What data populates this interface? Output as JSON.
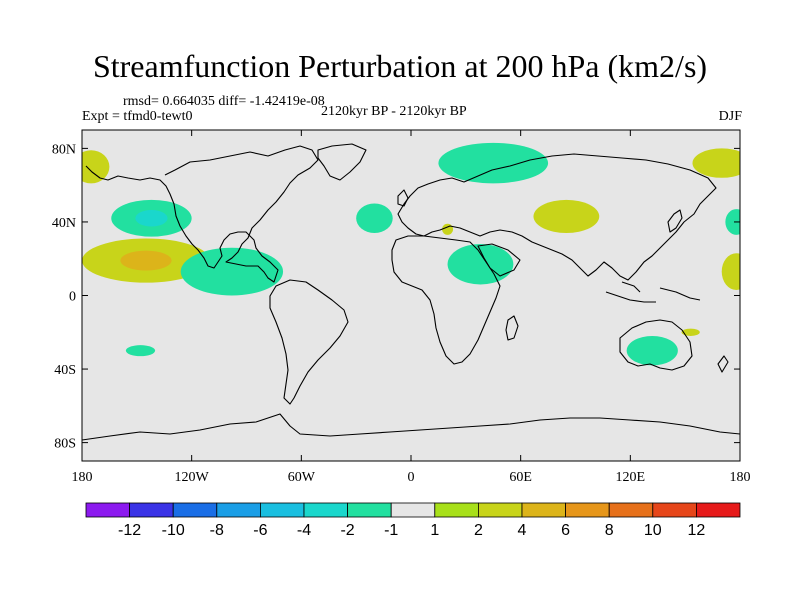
{
  "title": "Streamfunction Perturbation at 200 hPa (km2/s)",
  "stats": "rmsd= 0.664035 diff= -1.42419e-08",
  "experiment": "Expt = tfmd0-tewt0",
  "period": "2120kyr BP - 2120kyr BP",
  "season": "DJF",
  "map": {
    "projection": "cylindrical equidistant",
    "lon_range": [
      -180,
      180
    ],
    "lat_range": [
      -90,
      90
    ],
    "background_color": "#e6e6e6",
    "coastline_color": "#000000",
    "x_ticks": [
      {
        "lon": -180,
        "label": "180"
      },
      {
        "lon": -120,
        "label": "120W"
      },
      {
        "lon": -60,
        "label": "60W"
      },
      {
        "lon": 0,
        "label": "0"
      },
      {
        "lon": 60,
        "label": "60E"
      },
      {
        "lon": 120,
        "label": "120E"
      },
      {
        "lon": 180,
        "label": "180"
      }
    ],
    "y_ticks": [
      {
        "lat": 80,
        "label": "80N"
      },
      {
        "lat": 40,
        "label": "40N"
      },
      {
        "lat": 0,
        "label": "0"
      },
      {
        "lat": -40,
        "label": "40S"
      },
      {
        "lat": -80,
        "label": "80S"
      }
    ]
  },
  "colorbar": {
    "colors": [
      "#8c1aef",
      "#3a33e6",
      "#1a6ee6",
      "#1a9ee6",
      "#1abfe0",
      "#1ad7cc",
      "#22e0a0",
      "#e6e6e6",
      "#a8e01a",
      "#c8d41a",
      "#dcb41a",
      "#e6961a",
      "#e6701a",
      "#e6461a",
      "#e61a1a"
    ],
    "labels": [
      "-12",
      "-10",
      "-8",
      "-6",
      "-4",
      "-2",
      "-1",
      "1",
      "2",
      "4",
      "6",
      "8",
      "10",
      "12"
    ]
  },
  "anomaly_regions": [
    {
      "name": "north-pacific-negative",
      "lon": -142,
      "lat": 42,
      "rlon": 22,
      "rlat": 10,
      "level": -2,
      "core_level": -4
    },
    {
      "name": "subtropical-pacific-positive",
      "lon": -145,
      "lat": 19,
      "rlon": 35,
      "rlat": 12,
      "level": 2,
      "core_level": 4
    },
    {
      "name": "eastern-pacific-negative-band",
      "lon": -98,
      "lat": 13,
      "rlon": 28,
      "rlat": 13,
      "level": -2
    },
    {
      "name": "south-pacific-negative",
      "lon": -148,
      "lat": -30,
      "rlon": 8,
      "rlat": 3,
      "level": -2
    },
    {
      "name": "alaska-positive",
      "lon": -175,
      "lat": 70,
      "rlon": 10,
      "rlat": 9,
      "level": 2
    },
    {
      "name": "atlantic-negative",
      "lon": -20,
      "lat": 42,
      "rlon": 10,
      "rlat": 8,
      "level": -2
    },
    {
      "name": "mediterranean-positive",
      "lon": 20,
      "lat": 36,
      "rlon": 3,
      "rlat": 3,
      "level": 2
    },
    {
      "name": "north-eurasia-negative",
      "lon": 45,
      "lat": 72,
      "rlon": 30,
      "rlat": 11,
      "level": -2
    },
    {
      "name": "central-asia-positive",
      "lon": 85,
      "lat": 43,
      "rlon": 18,
      "rlat": 9,
      "level": 2
    },
    {
      "name": "north-africa-negative",
      "lon": 38,
      "lat": 17,
      "rlon": 18,
      "rlat": 11,
      "level": -2
    },
    {
      "name": "siberia-pacific-positive",
      "lon": 170,
      "lat": 72,
      "rlon": 16,
      "rlat": 8,
      "level": 2
    },
    {
      "name": "north-west-pacific-negative",
      "lon": 178,
      "lat": 40,
      "rlon": 6,
      "rlat": 7,
      "level": -2
    },
    {
      "name": "west-pacific-positive",
      "lon": 178,
      "lat": 13,
      "rlon": 8,
      "rlat": 10,
      "level": 2
    },
    {
      "name": "australia-negative",
      "lon": 132,
      "lat": -30,
      "rlon": 14,
      "rlat": 8,
      "level": -2
    },
    {
      "name": "tasman-positive",
      "lon": 153,
      "lat": -20,
      "rlon": 5,
      "rlat": 2,
      "level": 2
    }
  ]
}
